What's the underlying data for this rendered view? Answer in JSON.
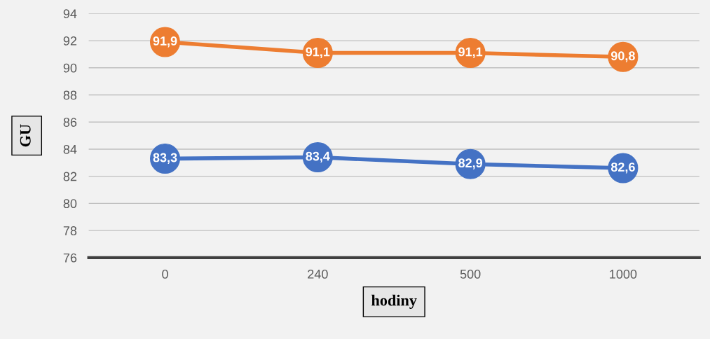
{
  "chart_data": {
    "type": "line",
    "xlabel": "hodiny",
    "ylabel": "GU",
    "categories": [
      "0",
      "240",
      "500",
      "1000"
    ],
    "series": [
      {
        "color": "#4472c4",
        "values": [
          83.3,
          83.4,
          82.9,
          82.6
        ],
        "value_labels": [
          "83,3",
          "83,4",
          "82,9",
          "82,6"
        ]
      },
      {
        "color": "#ed7d31",
        "values": [
          91.9,
          91.1,
          91.1,
          90.8
        ],
        "value_labels": [
          "91,9",
          "91,1",
          "91,1",
          "90,8"
        ]
      }
    ],
    "ylim": [
      76,
      94
    ],
    "yticks": [
      76,
      78,
      80,
      82,
      84,
      86,
      88,
      90,
      92,
      94
    ],
    "grid": "y",
    "marker": "circle",
    "line_style": "solid"
  }
}
